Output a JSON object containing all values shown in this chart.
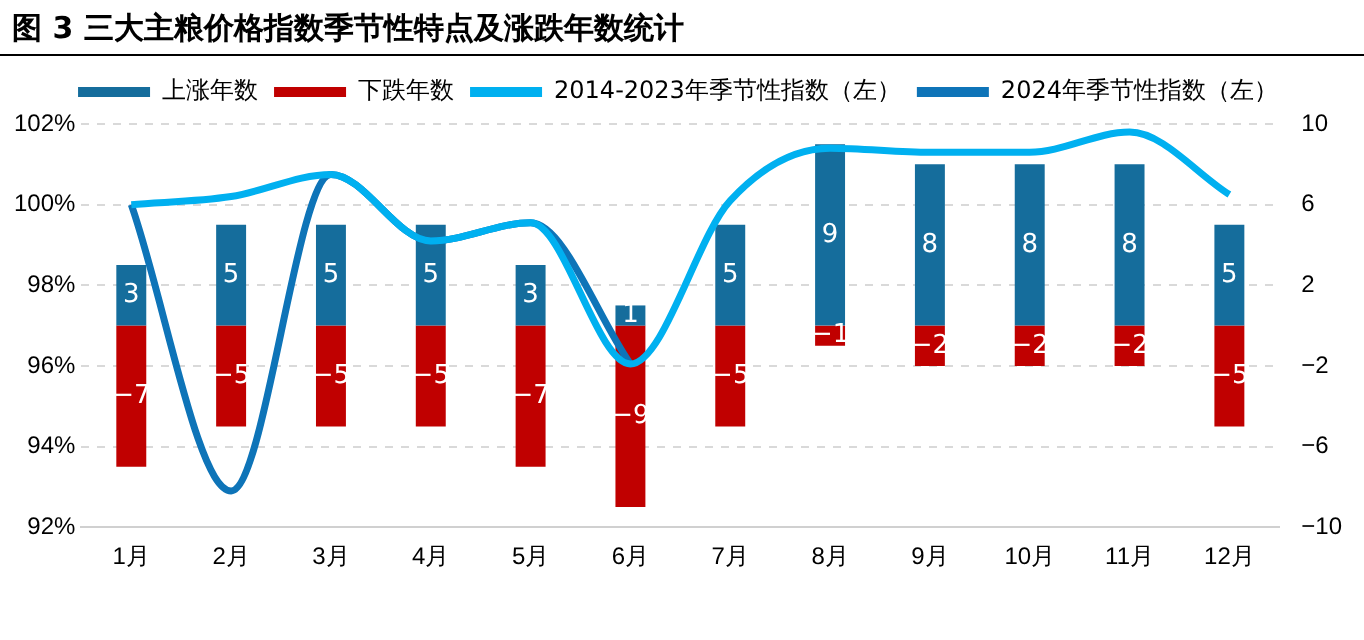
{
  "chart_data": {
    "type": "bar",
    "title": "图 3  三大主粮价格指数季节性特点及涨跌年数统计",
    "categories": [
      "1月",
      "2月",
      "3月",
      "4月",
      "5月",
      "6月",
      "7月",
      "8月",
      "9月",
      "10月",
      "11月",
      "12月"
    ],
    "series": [
      {
        "name": "上涨年数",
        "axis": "y2",
        "color": "#156d9c",
        "values": [
          3,
          5,
          5,
          5,
          3,
          1,
          5,
          9,
          8,
          8,
          8,
          5
        ],
        "value_labels": [
          "3",
          "5",
          "5",
          "5",
          "3",
          "1",
          "5",
          "9",
          "8",
          "8",
          "8",
          "5"
        ]
      },
      {
        "name": "下跌年数",
        "axis": "y2",
        "color": "#c00000",
        "values": [
          -7,
          -5,
          -5,
          -5,
          -7,
          -9,
          -5,
          -1,
          -2,
          -2,
          -2,
          -5
        ],
        "value_labels": [
          "−7",
          "−5",
          "−5",
          "−5",
          "−7",
          "−9",
          "−5",
          "−1",
          "−2",
          "−2",
          "−2",
          "−5"
        ]
      },
      {
        "name": "2014-2023年季节性指数（左）",
        "type": "line",
        "color": "#00b0f0",
        "values": [
          100,
          100.2,
          100.75,
          99.1,
          99.55,
          96.05,
          100.1,
          101.4,
          101.3,
          101.3,
          101.8,
          100.25
        ]
      },
      {
        "name": "2024年季节性指数（左）",
        "type": "line",
        "color": "#0e74b8",
        "values": [
          100,
          92.9,
          100.75,
          99.1,
          99.55,
          96.05,
          null,
          null,
          null,
          null,
          null,
          null
        ]
      }
    ],
    "stacked": true,
    "ylim": [
      92,
      102
    ],
    "yticks": [
      {
        "value": 92,
        "label": "92%"
      },
      {
        "value": 94,
        "label": "94%"
      },
      {
        "value": 96,
        "label": "96%"
      },
      {
        "value": 98,
        "label": "98%"
      },
      {
        "value": 100,
        "label": "100%"
      },
      {
        "value": 102,
        "label": "102%"
      }
    ],
    "y2lim": [
      -10,
      10
    ],
    "y2ticks": [
      -10,
      -6,
      -2,
      2,
      6,
      10
    ],
    "grid": "y",
    "legend": "top",
    "marker": "none"
  }
}
